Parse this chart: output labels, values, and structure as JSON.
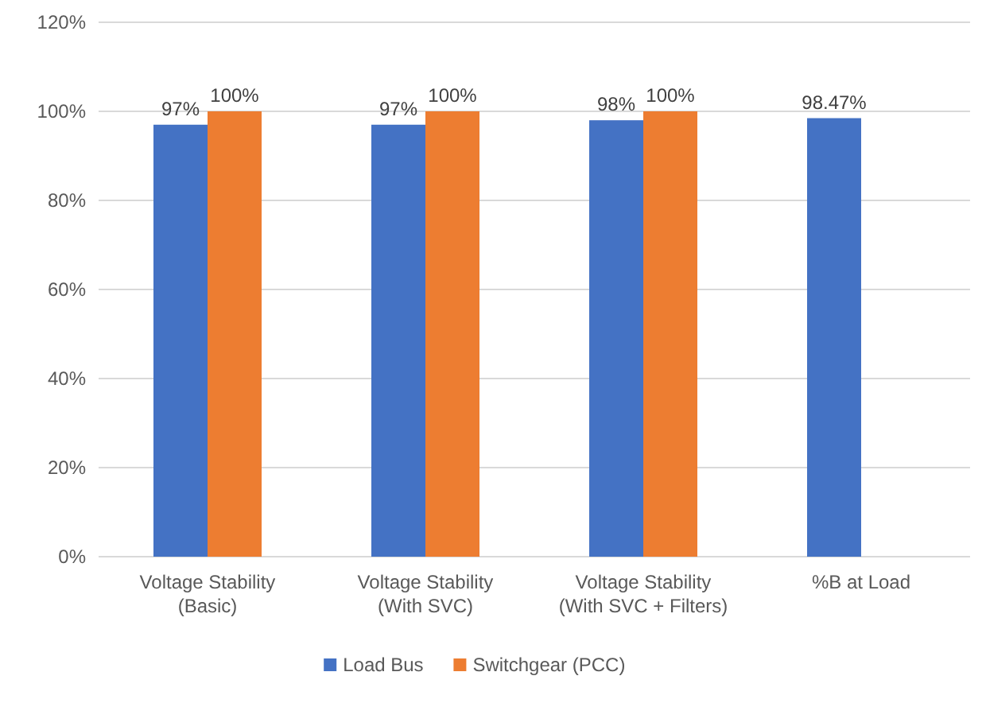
{
  "chart_data": {
    "type": "bar",
    "categories": [
      "Voltage Stability (Basic)",
      "Voltage Stability (With SVC)",
      "Voltage Stability (With SVC + Filters)",
      "%B at Load"
    ],
    "series": [
      {
        "name": "Load Bus",
        "color": "#4472c4",
        "values": [
          97,
          97,
          98,
          98.47
        ],
        "value_labels": [
          "97%",
          "97%",
          "98%",
          "98.47%"
        ]
      },
      {
        "name": "Switchgear (PCC)",
        "color": "#ed7d31",
        "values": [
          100,
          100,
          100,
          null
        ],
        "value_labels": [
          "100%",
          "100%",
          "100%",
          null
        ]
      }
    ],
    "ylim": [
      0,
      120
    ],
    "yticks": [
      {
        "value": 0,
        "label": "0%"
      },
      {
        "value": 20,
        "label": "20%"
      },
      {
        "value": 40,
        "label": "40%"
      },
      {
        "value": 60,
        "label": "60%"
      },
      {
        "value": 80,
        "label": "80%"
      },
      {
        "value": 100,
        "label": "100%"
      },
      {
        "value": 120,
        "label": "120%"
      }
    ],
    "grid": "y",
    "legend": "bottom"
  }
}
